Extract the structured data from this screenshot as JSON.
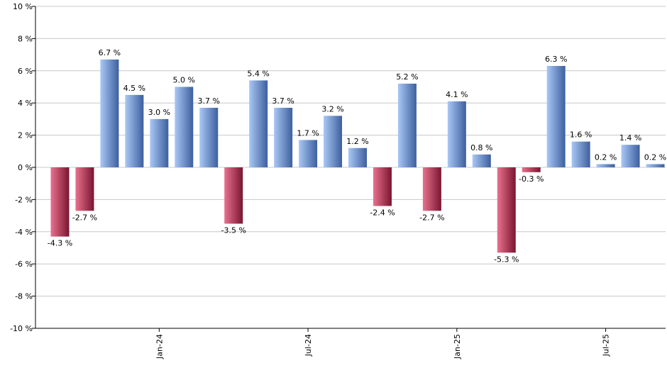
{
  "chart_data": {
    "type": "bar",
    "title": "",
    "xlabel": "",
    "ylabel": "",
    "ylim": [
      -10,
      10
    ],
    "y_ticks": [
      10,
      8,
      6,
      4,
      2,
      0,
      -2,
      -4,
      -6,
      -8,
      -10
    ],
    "y_tick_labels": [
      "10 %",
      "8 %",
      "6 %",
      "4 %",
      "2 %",
      "0 %",
      "-2 %",
      "-4 %",
      "-6 %",
      "-8 %",
      "-10 %"
    ],
    "grid": true,
    "legend": "none",
    "x_tick_labels": [
      {
        "label": "Jan-24",
        "index": 4
      },
      {
        "label": "Jul-24",
        "index": 10
      },
      {
        "label": "Jan-25",
        "index": 16
      },
      {
        "label": "Jul-25",
        "index": 22
      }
    ],
    "values": [
      -4.3,
      -2.7,
      6.7,
      4.5,
      3.0,
      5.0,
      3.7,
      -3.5,
      5.4,
      3.7,
      1.7,
      3.2,
      1.2,
      -2.4,
      5.2,
      -2.7,
      4.1,
      0.8,
      -5.3,
      -0.3,
      6.3,
      1.6,
      0.2,
      1.4,
      0.2
    ],
    "labels": [
      "-4.3 %",
      "-2.7 %",
      "6.7 %",
      "4.5 %",
      "3.0 %",
      "5.0 %",
      "3.7 %",
      "-3.5 %",
      "5.4 %",
      "3.7 %",
      "1.7 %",
      "3.2 %",
      "1.2 %",
      "-2.4 %",
      "5.2 %",
      "-2.7 %",
      "4.1 %",
      "0.8 %",
      "-5.3 %",
      "-0.3 %",
      "6.3 %",
      "1.6 %",
      "0.2 %",
      "1.4 %",
      "0.2 %"
    ],
    "colors": {
      "positive_light": "#a9c8f5",
      "positive_dark": "#3d5f9e",
      "negative_light": "#e8728e",
      "negative_dark": "#7a1530",
      "grid": "#c8c8c8",
      "axis": "#000000"
    }
  }
}
